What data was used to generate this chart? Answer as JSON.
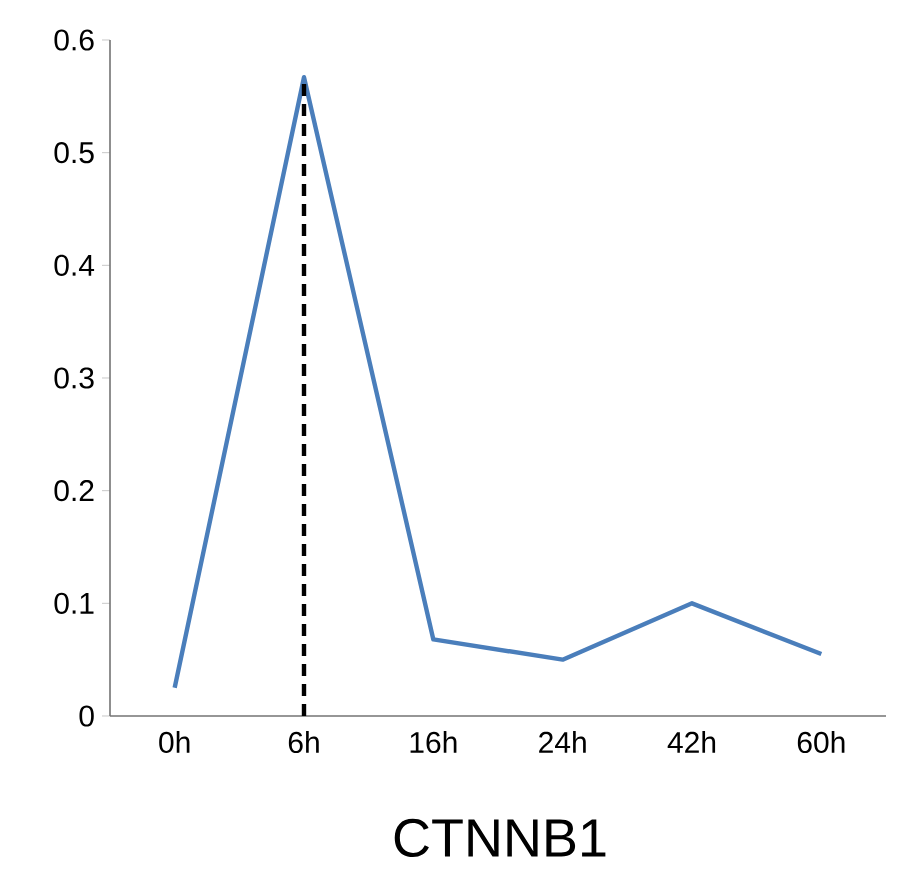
{
  "chart_data": {
    "type": "line",
    "title": "CTNNB1",
    "categories": [
      "0h",
      "6h",
      "16h",
      "24h",
      "42h",
      "60h"
    ],
    "series": [
      {
        "color": "#4a7ebb",
        "values": [
          0.025,
          0.567,
          0.068,
          0.05,
          0.1,
          0.055
        ]
      }
    ],
    "ylim": [
      0,
      0.6
    ],
    "yticks": [
      0,
      0.1,
      0.2,
      0.3,
      0.4,
      0.5,
      0.6
    ],
    "grid": false,
    "marker": "none",
    "line_style": "solid",
    "ref_lines": [
      {
        "axis": "x",
        "value": "6h",
        "color": "#000000",
        "line_style": "dashed"
      }
    ]
  }
}
